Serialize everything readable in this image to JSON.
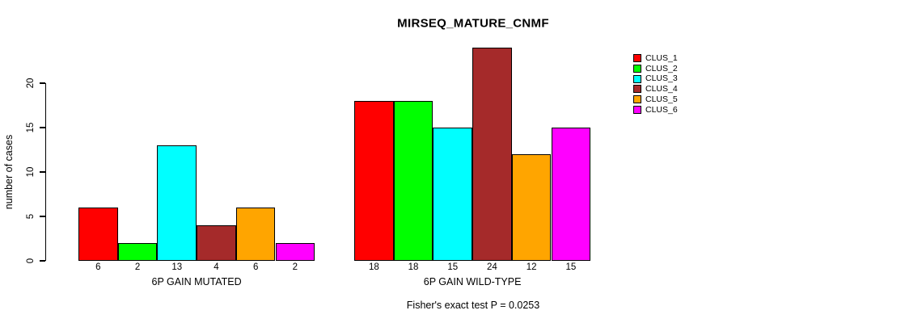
{
  "chart_data": {
    "type": "bar",
    "title": "MIRSEQ_MATURE_CNMF",
    "ylabel": "number of cases",
    "xlabel": "",
    "ylim": [
      0,
      20
    ],
    "yticks": [
      0,
      5,
      10,
      15,
      20
    ],
    "grid": false,
    "legend_position": "right-outside-top",
    "categories": [
      "6P GAIN MUTATED",
      "6P GAIN WILD-TYPE"
    ],
    "series": [
      {
        "name": "CLUS_1",
        "color": "#FF0000",
        "values": [
          6,
          18
        ]
      },
      {
        "name": "CLUS_2",
        "color": "#00FF00",
        "values": [
          2,
          18
        ]
      },
      {
        "name": "CLUS_3",
        "color": "#00FFFF",
        "values": [
          13,
          15
        ]
      },
      {
        "name": "CLUS_4",
        "color": "#A52A2A",
        "values": [
          4,
          24
        ]
      },
      {
        "name": "CLUS_5",
        "color": "#FFA500",
        "values": [
          6,
          12
        ]
      },
      {
        "name": "CLUS_6",
        "color": "#FF00FF",
        "values": [
          2,
          15
        ]
      }
    ],
    "bar_value_labels": [
      [
        "6",
        "2",
        "13",
        "4",
        "6",
        "2"
      ],
      [
        "18",
        "18",
        "15",
        "24",
        "12",
        "15"
      ]
    ],
    "annotation": "Fisher's exact test P = 0.0253",
    "axis_color": "#000000",
    "bar_border_color": "#000000",
    "background_color": "#FFFFFF"
  }
}
